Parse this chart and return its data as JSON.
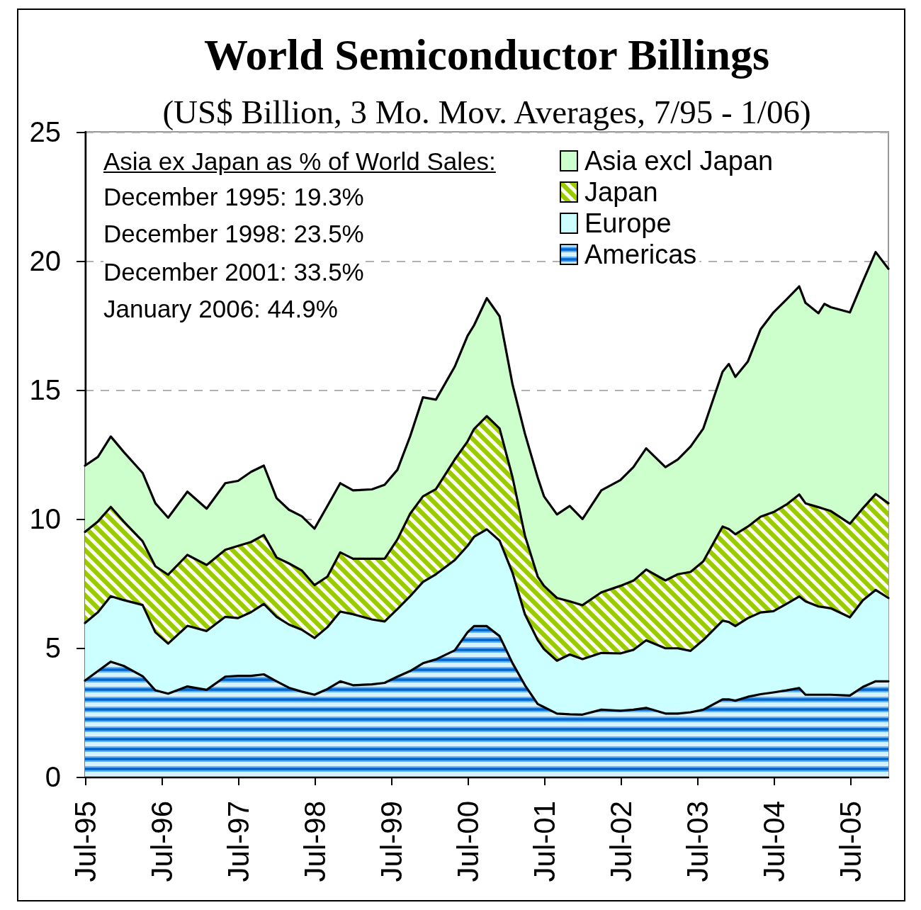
{
  "chart_data": {
    "type": "area",
    "title": "World Semiconductor Billings",
    "subtitle": "(US$ Billion, 3 Mo. Mov. Averages, 7/95 - 1/06)",
    "annotations": [
      "Asia ex Japan as % of World Sales:",
      "December 1995: 19.3%",
      "December 1998: 23.5%",
      "December 2001: 33.5%",
      "January 2006: 44.9%"
    ],
    "x": [
      "1995-07",
      "1995-09",
      "1995-11",
      "1996-01",
      "1996-04",
      "1996-06",
      "1996-08",
      "1996-11",
      "1997-02",
      "1997-05",
      "1997-07",
      "1997-09",
      "1997-11",
      "1998-01",
      "1998-03",
      "1998-05",
      "1998-07",
      "1998-09",
      "1998-11",
      "1999-01",
      "1999-04",
      "1999-06",
      "1999-08",
      "1999-10",
      "1999-12",
      "2000-02",
      "2000-05",
      "2000-07",
      "2000-08",
      "2000-10",
      "2000-12",
      "2001-02",
      "2001-04",
      "2001-06",
      "2001-07",
      "2001-09",
      "2001-11",
      "2002-01",
      "2002-04",
      "2002-07",
      "2002-09",
      "2002-11",
      "2003-02",
      "2003-04",
      "2003-06",
      "2003-08",
      "2003-11",
      "2003-12",
      "2004-01",
      "2004-03",
      "2004-05",
      "2004-07",
      "2004-09",
      "2004-11",
      "2004-12",
      "2005-02",
      "2005-03",
      "2005-04",
      "2005-07",
      "2005-09",
      "2005-11",
      "2006-01"
    ],
    "series": [
      {
        "name": "Americas",
        "color": "#0066cc",
        "values": [
          3.73,
          4.1,
          4.46,
          4.3,
          3.9,
          3.35,
          3.22,
          3.5,
          3.37,
          3.88,
          3.91,
          3.91,
          3.97,
          3.7,
          3.45,
          3.3,
          3.18,
          3.4,
          3.7,
          3.55,
          3.58,
          3.64,
          3.88,
          4.1,
          4.4,
          4.55,
          4.9,
          5.6,
          5.84,
          5.84,
          5.45,
          4.4,
          3.55,
          2.82,
          2.7,
          2.45,
          2.42,
          2.41,
          2.6,
          2.56,
          2.6,
          2.67,
          2.45,
          2.45,
          2.5,
          2.6,
          3.0,
          3.0,
          2.95,
          3.1,
          3.2,
          3.27,
          3.35,
          3.44,
          3.18,
          3.18,
          3.18,
          3.18,
          3.15,
          3.48,
          3.7,
          3.7
        ]
      },
      {
        "name": "Europe",
        "color": "#ccffff",
        "values": [
          2.23,
          2.28,
          2.54,
          2.55,
          2.76,
          2.25,
          1.94,
          2.35,
          2.28,
          2.32,
          2.24,
          2.47,
          2.73,
          2.5,
          2.45,
          2.4,
          2.2,
          2.4,
          2.7,
          2.75,
          2.52,
          2.38,
          2.62,
          2.9,
          3.15,
          3.3,
          3.5,
          3.35,
          3.46,
          3.75,
          3.7,
          3.5,
          2.75,
          2.48,
          2.25,
          2.05,
          2.32,
          2.15,
          2.2,
          2.22,
          2.32,
          2.62,
          2.53,
          2.53,
          2.38,
          2.7,
          3.05,
          3.0,
          2.89,
          3.05,
          3.17,
          3.15,
          3.35,
          3.55,
          3.62,
          3.42,
          3.39,
          3.35,
          3.03,
          3.36,
          3.54,
          3.23
        ]
      },
      {
        "name": "Japan",
        "color": "#99cc00",
        "values": [
          3.53,
          3.52,
          3.46,
          3.05,
          2.47,
          2.56,
          2.67,
          2.75,
          2.56,
          2.6,
          2.8,
          2.72,
          2.67,
          2.3,
          2.37,
          2.3,
          2.05,
          1.96,
          2.3,
          2.15,
          2.35,
          2.43,
          2.7,
          3.2,
          3.32,
          3.3,
          3.9,
          4.05,
          4.18,
          4.39,
          4.35,
          3.7,
          3.05,
          2.46,
          2.45,
          2.43,
          2.06,
          2.09,
          2.35,
          2.62,
          2.68,
          2.74,
          2.63,
          2.87,
          3.06,
          3.05,
          3.65,
          3.6,
          3.56,
          3.55,
          3.71,
          3.84,
          3.85,
          3.95,
          3.8,
          3.85,
          3.81,
          3.77,
          3.63,
          3.57,
          3.72,
          3.67
        ]
      },
      {
        "name": "Asia excl Japan",
        "color": "#ccffcc",
        "values": [
          2.57,
          2.5,
          2.73,
          2.7,
          2.65,
          2.44,
          2.21,
          2.45,
          2.18,
          2.58,
          2.52,
          2.72,
          2.69,
          2.3,
          2.08,
          2.1,
          2.19,
          2.74,
          2.68,
          2.65,
          2.69,
          2.87,
          2.7,
          3.0,
          3.84,
          3.47,
          3.6,
          4.09,
          4.02,
          4.57,
          4.35,
          3.6,
          3.95,
          3.84,
          3.47,
          3.24,
          3.7,
          3.34,
          3.95,
          4.1,
          4.4,
          4.7,
          4.39,
          4.45,
          4.86,
          5.15,
          6.0,
          6.4,
          6.1,
          6.4,
          7.27,
          7.74,
          7.95,
          8.07,
          7.77,
          7.52,
          7.95,
          7.9,
          8.19,
          8.79,
          9.38,
          9.09
        ]
      }
    ],
    "stacked": true,
    "xlim": [
      "1995-07",
      "2006-01"
    ],
    "xticks": [
      {
        "value": "1995-07",
        "label": "Jul-95"
      },
      {
        "value": "1996-07",
        "label": "Jul-96"
      },
      {
        "value": "1997-07",
        "label": "Jul-97"
      },
      {
        "value": "1998-07",
        "label": "Jul-98"
      },
      {
        "value": "1999-07",
        "label": "Jul-99"
      },
      {
        "value": "2000-07",
        "label": "Jul-00"
      },
      {
        "value": "2001-07",
        "label": "Jul-01"
      },
      {
        "value": "2002-07",
        "label": "Jul-02"
      },
      {
        "value": "2003-07",
        "label": "Jul-03"
      },
      {
        "value": "2004-07",
        "label": "Jul-04"
      },
      {
        "value": "2005-07",
        "label": "Jul-05"
      }
    ],
    "ylim": [
      0,
      25
    ],
    "yticks": [
      0,
      5,
      10,
      15,
      20,
      25
    ],
    "grid": "y",
    "legend": "top right"
  }
}
